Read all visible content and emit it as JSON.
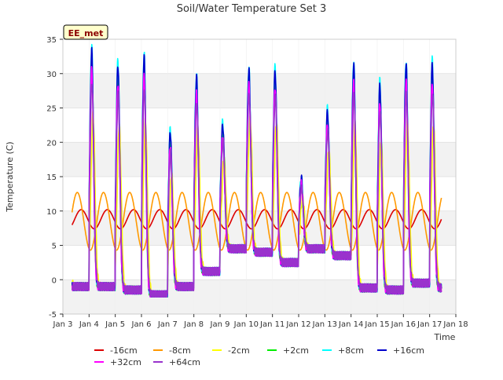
{
  "chart_data": {
    "type": "line",
    "title": "Soil/Water Temperature Set 3",
    "xlabel": "Time",
    "ylabel": "Temperature (C)",
    "badge": "EE_met",
    "xlim": [
      3,
      18
    ],
    "ylim": [
      -5,
      35
    ],
    "x_ticks": [
      {
        "x": 3,
        "label": "Jan 3"
      },
      {
        "x": 4,
        "label": "Jan 4"
      },
      {
        "x": 5,
        "label": "Jan 5"
      },
      {
        "x": 6,
        "label": "Jan 6"
      },
      {
        "x": 7,
        "label": "Jan 7"
      },
      {
        "x": 8,
        "label": "Jan 8"
      },
      {
        "x": 9,
        "label": "Jan 9"
      },
      {
        "x": 10,
        "label": "Jan 10"
      },
      {
        "x": 11,
        "label": "Jan 11"
      },
      {
        "x": 12,
        "label": "Jan 12"
      },
      {
        "x": 13,
        "label": "Jan 13"
      },
      {
        "x": 14,
        "label": "Jan 14"
      },
      {
        "x": 15,
        "label": "Jan 15"
      },
      {
        "x": 16,
        "label": "Jan 16"
      },
      {
        "x": 17,
        "label": "Jan 17"
      },
      {
        "x": 18,
        "label": "Jan 18"
      }
    ],
    "y_ticks": [
      -5,
      0,
      5,
      10,
      15,
      20,
      25,
      30,
      35
    ],
    "grid": true,
    "legend_position": "bottom",
    "daily_peaks": {
      "days": [
        4,
        5,
        6,
        7,
        8,
        9,
        10,
        11,
        12,
        13,
        14,
        15,
        16,
        17
      ],
      "peak": [
        34,
        32,
        33,
        22,
        30,
        23,
        31,
        31,
        15,
        25,
        32,
        29,
        32,
        32
      ],
      "min": [
        -1,
        -1.5,
        -2.2,
        -1,
        1.2,
        4.5,
        4,
        2.5,
        4.5,
        3.5,
        -1.2,
        -1.5,
        -0.5,
        -1.2
      ]
    },
    "series": [
      {
        "name": "-16cm",
        "color": "#dd0000",
        "values_summary": {
          "mean": 8.8,
          "amplitude": 1.5
        }
      },
      {
        "name": "-8cm",
        "color": "#ff9900",
        "values_summary": {
          "mean": 8.5,
          "amplitude": 4.5
        }
      },
      {
        "name": "-2cm",
        "color": "#ffff00",
        "values_summary": {
          "mean": 9,
          "amplitude": 10
        }
      },
      {
        "name": "+2cm",
        "color": "#00ee00",
        "values_summary": {
          "mean": 10,
          "amplitude": 14
        }
      },
      {
        "name": "+8cm",
        "color": "#00ffff",
        "values_summary": {
          "mean": 11,
          "amplitude": 16
        }
      },
      {
        "name": "+16cm",
        "color": "#0000cc",
        "values_summary": {
          "mean": 11,
          "amplitude": 16
        }
      },
      {
        "name": "+32cm",
        "color": "#ff00ff",
        "values_summary": {
          "mean": 10.5,
          "amplitude": 15
        }
      },
      {
        "name": "+64cm",
        "color": "#9933cc",
        "values_summary": {
          "mean": 10,
          "amplitude": 14
        }
      }
    ]
  }
}
